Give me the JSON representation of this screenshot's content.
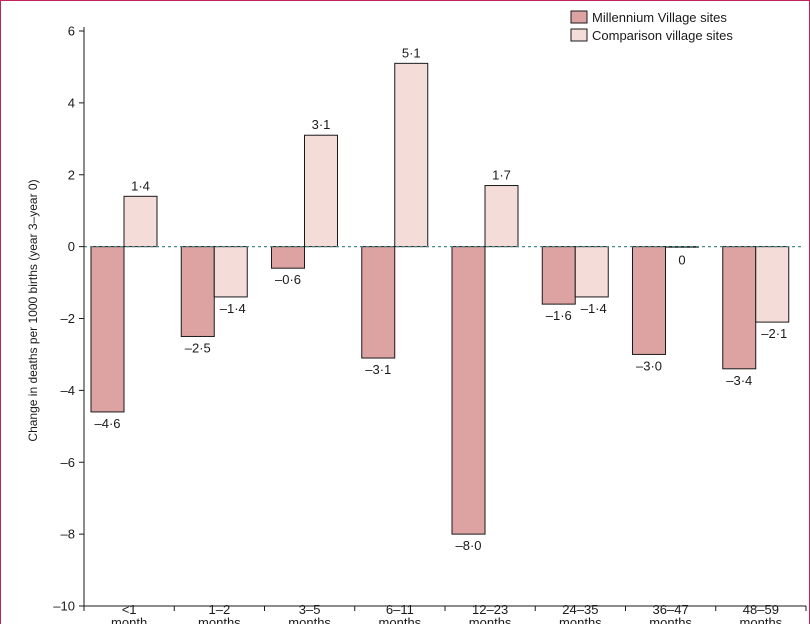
{
  "chart_data": {
    "type": "bar",
    "categories": [
      [
        "<1",
        "month"
      ],
      [
        "1–2",
        "months"
      ],
      [
        "3–5",
        "months"
      ],
      [
        "6–11",
        "months"
      ],
      [
        "12–23",
        "months"
      ],
      [
        "24–35",
        "months"
      ],
      [
        "36–47",
        "months"
      ],
      [
        "48–59",
        "months"
      ]
    ],
    "series": [
      {
        "name": "Millennium Village sites",
        "values": [
          -4.6,
          -2.5,
          -0.6,
          -3.1,
          -8.0,
          -1.6,
          -3.0,
          -3.4
        ],
        "labels": [
          "–4·6",
          "–2·5",
          "–0·6",
          "–3·1",
          "–8·0",
          "–1·6",
          "–3·0",
          "–3·4"
        ],
        "color": "#dda3a2"
      },
      {
        "name": "Comparison village sites",
        "values": [
          1.4,
          -1.4,
          3.1,
          5.1,
          1.7,
          -1.4,
          0,
          -2.1
        ],
        "labels": [
          "1·4",
          "–1·4",
          "3·1",
          "5·1",
          "1·7",
          "–1·4",
          "0",
          "–2·1"
        ],
        "color": "#f4dcd8"
      }
    ],
    "ylabel": "Change in deaths per 1000 births (year 3–year 0)",
    "xlabel": "",
    "ylim": [
      -10,
      6
    ],
    "yticks": [
      6,
      4,
      2,
      0,
      -2,
      -4,
      -6,
      -8,
      -10
    ],
    "ytick_labels": [
      "6",
      "4",
      "2",
      "0",
      "–2",
      "–4",
      "–6",
      "–8",
      "–10"
    ],
    "zero_line_color": "#4a8a8a",
    "bar_edge_color": "#1a1a1a",
    "legend_position": "top-right",
    "grid": false
  }
}
